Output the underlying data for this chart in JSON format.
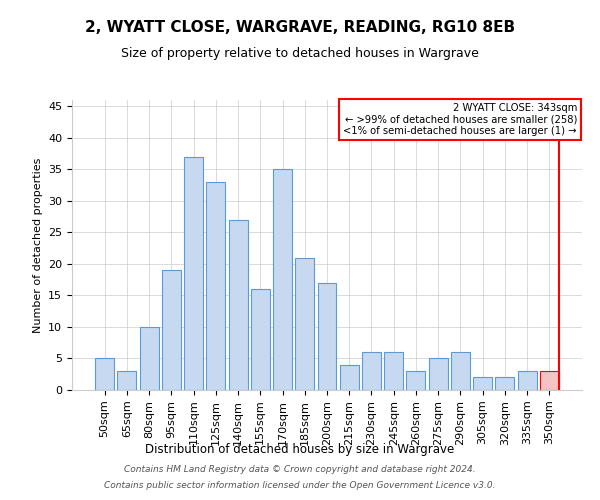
{
  "title": "2, WYATT CLOSE, WARGRAVE, READING, RG10 8EB",
  "subtitle": "Size of property relative to detached houses in Wargrave",
  "xlabel": "Distribution of detached houses by size in Wargrave",
  "ylabel": "Number of detached properties",
  "footer_line1": "Contains HM Land Registry data © Crown copyright and database right 2024.",
  "footer_line2": "Contains public sector information licensed under the Open Government Licence v3.0.",
  "categories": [
    "50sqm",
    "65sqm",
    "80sqm",
    "95sqm",
    "110sqm",
    "125sqm",
    "140sqm",
    "155sqm",
    "170sqm",
    "185sqm",
    "200sqm",
    "215sqm",
    "230sqm",
    "245sqm",
    "260sqm",
    "275sqm",
    "290sqm",
    "305sqm",
    "320sqm",
    "335sqm",
    "350sqm"
  ],
  "values": [
    5,
    3,
    10,
    19,
    37,
    33,
    27,
    16,
    35,
    21,
    17,
    4,
    6,
    6,
    3,
    5,
    6,
    2,
    2,
    3,
    3
  ],
  "bar_color": "#c6d9f1",
  "bar_edge_color": "#5b9bd5",
  "highlight_index": 20,
  "highlight_bar_color": "#f2c4c4",
  "highlight_bar_edge_color": "#ff0000",
  "highlight_line_color": "#ff0000",
  "ylim": [
    0,
    46
  ],
  "yticks": [
    0,
    5,
    10,
    15,
    20,
    25,
    30,
    35,
    40,
    45
  ],
  "annotation_line1": "2 WYATT CLOSE: 343sqm",
  "annotation_line2": "← >99% of detached houses are smaller (258)",
  "annotation_line3": "<1% of semi-detached houses are larger (1) →",
  "annotation_box_color": "#ff0000",
  "bg_color": "#ffffff",
  "grid_color": "#cccccc",
  "title_fontsize": 11,
  "subtitle_fontsize": 9,
  "ylabel_fontsize": 8,
  "xlabel_fontsize": 8.5,
  "tick_fontsize": 8,
  "footer_fontsize": 6.5
}
